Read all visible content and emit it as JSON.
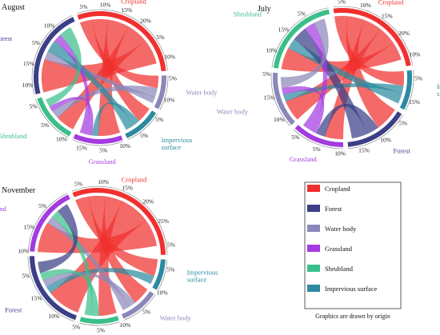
{
  "colors": {
    "Cropland": "#f0302e",
    "Forest": "#3a3f86",
    "Water body": "#8a88b8",
    "Grassland": "#a33be0",
    "Shrubland": "#3bbf8a",
    "Impervious surface": "#2b8aa0"
  },
  "chart_data": [
    {
      "type": "chord",
      "title": "August",
      "categories": [
        "Cropland",
        "Water body",
        "Impervious surface",
        "Grassland",
        "Shrubland",
        "Forest"
      ],
      "arc_shares": [
        0.31,
        0.09,
        0.1,
        0.13,
        0.13,
        0.24
      ],
      "ticks": [
        "5%",
        "10%",
        "15%",
        "20%",
        "5%",
        "10%",
        "5%",
        "10%",
        "5%",
        "5%",
        "10%",
        "5%",
        "15%",
        "10%",
        "5%",
        "5%",
        "10%",
        "15%",
        "5%",
        "10%"
      ],
      "flows": [
        {
          "from": "Cropland",
          "to": "Water body",
          "value": 0.04
        },
        {
          "from": "Cropland",
          "to": "Impervious surface",
          "value": 0.05
        },
        {
          "from": "Cropland",
          "to": "Grassland",
          "value": 0.07
        },
        {
          "from": "Cropland",
          "to": "Shrubland",
          "value": 0.07
        },
        {
          "from": "Cropland",
          "to": "Forest",
          "value": 0.08
        },
        {
          "from": "Water body",
          "to": "Shrubland",
          "value": 0.03
        },
        {
          "from": "Water body",
          "to": "Forest",
          "value": 0.02
        },
        {
          "from": "Impervious surface",
          "to": "Grassland",
          "value": 0.02
        },
        {
          "from": "Impervious surface",
          "to": "Forest",
          "value": 0.03
        },
        {
          "from": "Grassland",
          "to": "Shrubland",
          "value": 0.02
        },
        {
          "from": "Grassland",
          "to": "Forest",
          "value": 0.02
        },
        {
          "from": "Shrubland",
          "to": "Forest",
          "value": 0.03
        }
      ]
    },
    {
      "type": "chord",
      "title": "July",
      "categories": [
        "Cropland",
        "Impervious surface",
        "Forest",
        "Grassland",
        "Water body",
        "Shrubland"
      ],
      "arc_shares": [
        0.26,
        0.1,
        0.16,
        0.13,
        0.14,
        0.21
      ],
      "ticks": [
        "5%",
        "10%",
        "15%",
        "20%",
        "10%",
        "5%",
        "15%",
        "5%",
        "10%",
        "15%",
        "10%",
        "5%",
        "5%",
        "10%",
        "15%",
        "5%",
        "10%",
        "15%",
        "5%"
      ],
      "flows": [
        {
          "from": "Cropland",
          "to": "Impervious surface",
          "value": 0.04
        },
        {
          "from": "Cropland",
          "to": "Forest",
          "value": 0.06
        },
        {
          "from": "Cropland",
          "to": "Grassland",
          "value": 0.06
        },
        {
          "from": "Cropland",
          "to": "Water body",
          "value": 0.06
        },
        {
          "from": "Cropland",
          "to": "Shrubland",
          "value": 0.06
        },
        {
          "from": "Impervious surface",
          "to": "Water body",
          "value": 0.02
        },
        {
          "from": "Impervious surface",
          "to": "Shrubland",
          "value": 0.03
        },
        {
          "from": "Forest",
          "to": "Grassland",
          "value": 0.03
        },
        {
          "from": "Forest",
          "to": "Shrubland",
          "value": 0.04
        },
        {
          "from": "Grassland",
          "to": "Water body",
          "value": 0.02
        },
        {
          "from": "Grassland",
          "to": "Shrubland",
          "value": 0.03
        },
        {
          "from": "Water body",
          "to": "Shrubland",
          "value": 0.03
        }
      ]
    },
    {
      "type": "chord",
      "title": "November",
      "categories": [
        "Cropland",
        "Impervious surface",
        "Water body",
        "Shrubland",
        "Forest",
        "Grassland"
      ],
      "arc_shares": [
        0.33,
        0.08,
        0.1,
        0.1,
        0.21,
        0.18
      ],
      "ticks": [
        "5%",
        "10%",
        "15%",
        "20%",
        "25%",
        "5%",
        "5%",
        "10%",
        "5%",
        "10%",
        "5%",
        "5%",
        "10%",
        "15%",
        "5%",
        "10%",
        "15%",
        "5%"
      ],
      "flows": [
        {
          "from": "Cropland",
          "to": "Impervious surface",
          "value": 0.04
        },
        {
          "from": "Cropland",
          "to": "Water body",
          "value": 0.05
        },
        {
          "from": "Cropland",
          "to": "Shrubland",
          "value": 0.05
        },
        {
          "from": "Cropland",
          "to": "Forest",
          "value": 0.09
        },
        {
          "from": "Cropland",
          "to": "Grassland",
          "value": 0.08
        },
        {
          "from": "Impervious surface",
          "to": "Forest",
          "value": 0.02
        },
        {
          "from": "Water body",
          "to": "Forest",
          "value": 0.02
        },
        {
          "from": "Water body",
          "to": "Grassland",
          "value": 0.02
        },
        {
          "from": "Shrubland",
          "to": "Forest",
          "value": 0.02
        },
        {
          "from": "Shrubland",
          "to": "Grassland",
          "value": 0.02
        },
        {
          "from": "Forest",
          "to": "Grassland",
          "value": 0.03
        }
      ]
    }
  ],
  "legend": {
    "items": [
      "Cropland",
      "Forest",
      "Water body",
      "Grassland",
      "Shrubland",
      "Impervious surface"
    ],
    "caption": "Graphics are drawn by origin"
  }
}
